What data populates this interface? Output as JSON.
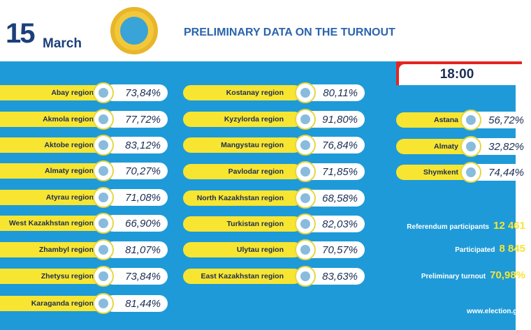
{
  "header": {
    "day": "15",
    "month": "March",
    "title": "PRELIMINARY DATA ON THE TURNOUT"
  },
  "time": "18:00",
  "regions_left": [
    {
      "name": "Abay region",
      "turnout": "73,84%"
    },
    {
      "name": "Akmola region",
      "turnout": "77,72%"
    },
    {
      "name": "Aktobe region",
      "turnout": "83,12%"
    },
    {
      "name": "Almaty region",
      "turnout": "70,27%"
    },
    {
      "name": "Atyrau region",
      "turnout": "71,08%"
    },
    {
      "name": "West Kazakhstan region",
      "turnout": "66,90%"
    },
    {
      "name": "Zhambyl region",
      "turnout": "81,07%"
    },
    {
      "name": "Zhetysu region",
      "turnout": "73,84%"
    },
    {
      "name": "Karaganda region",
      "turnout": "81,44%"
    }
  ],
  "regions_middle": [
    {
      "name": "Kostanay region",
      "turnout": "80,11%"
    },
    {
      "name": "Kyzylorda region",
      "turnout": "91,80%"
    },
    {
      "name": "Mangystau region",
      "turnout": "76,84%"
    },
    {
      "name": "Pavlodar region",
      "turnout": "71,85%"
    },
    {
      "name": "North Kazakhstan region",
      "turnout": "68,58%"
    },
    {
      "name": "Turkistan region",
      "turnout": "82,03%"
    },
    {
      "name": "Ulytau region",
      "turnout": "70,57%"
    },
    {
      "name": "East Kazakhstan region",
      "turnout": "83,63%"
    }
  ],
  "cities": [
    {
      "name": "Astana",
      "turnout": "56,72%"
    },
    {
      "name": "Almaty",
      "turnout": "32,82%"
    },
    {
      "name": "Shymkent",
      "turnout": "74,44%"
    }
  ],
  "summary": [
    {
      "label": "Referendum participants",
      "value": "12 461"
    },
    {
      "label": "Participated",
      "value": "8 845"
    },
    {
      "label": "Preliminary turnout",
      "value": "70,98%"
    }
  ],
  "website": "www.election.g"
}
